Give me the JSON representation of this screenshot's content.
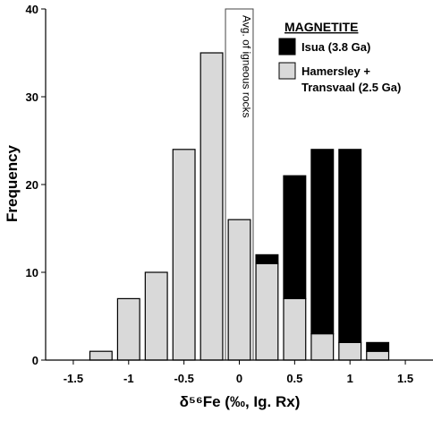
{
  "chart_data": {
    "type": "bar",
    "title": "",
    "xlabel": "δ⁵⁶Fe (‰, Ig. Rx)",
    "ylabel": "Frequency",
    "xlim": [
      -1.75,
      1.75
    ],
    "ylim": [
      0,
      40
    ],
    "xticks": [
      -1.5,
      -1,
      -0.5,
      0,
      0.5,
      1,
      1.5
    ],
    "xtick_labels": [
      "-1.5",
      "-1",
      "-0.5",
      "0",
      "0.5",
      "1",
      "1.5"
    ],
    "yticks": [
      0,
      10,
      20,
      30,
      40
    ],
    "ytick_labels": [
      "0",
      "10",
      "20",
      "30",
      "40"
    ],
    "bin_width": 0.25,
    "stacked": true,
    "bin_centers": [
      -1.25,
      -1.0,
      -0.75,
      -0.5,
      -0.25,
      0.0,
      0.25,
      0.5,
      0.75,
      1.0,
      1.25
    ],
    "series": [
      {
        "name": "Hamersley + Transvaal (2.5 Ga)",
        "color": "#d9d9d9",
        "values": [
          1,
          7,
          10,
          24,
          35,
          16,
          11,
          7,
          3,
          2,
          1
        ]
      },
      {
        "name": "Isua (3.8 Ga)",
        "color": "#000000",
        "values": [
          0,
          0,
          0,
          0,
          0,
          0,
          1,
          14,
          21,
          22,
          1
        ]
      }
    ],
    "legend": {
      "title": "MAGNETITE",
      "position": "top-right",
      "entries": [
        "Isua (3.8 Ga)",
        "Hamersley +",
        "Transvaal  (2.5 Ga)"
      ]
    },
    "annotation": {
      "text": "Avg. of igneous rocks",
      "x_range": [
        -0.125,
        0.125
      ]
    }
  }
}
